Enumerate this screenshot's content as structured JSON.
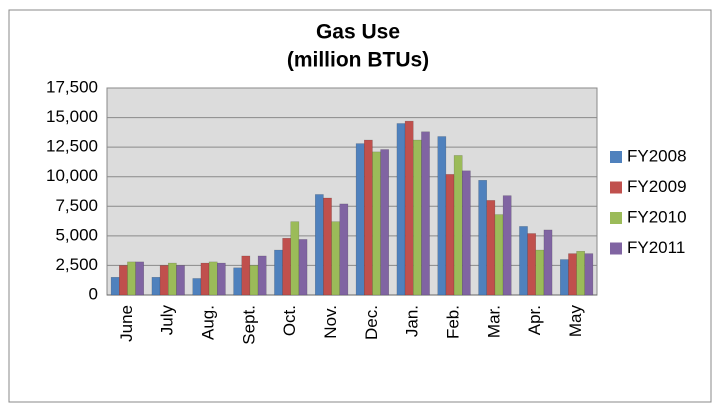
{
  "chart_data": {
    "type": "bar",
    "title": "Gas Use",
    "subtitle": "(million BTUs)",
    "categories": [
      "June",
      "July",
      "Aug.",
      "Sept.",
      "Oct.",
      "Nov.",
      "Dec.",
      "Jan.",
      "Feb.",
      "Mar.",
      "Apr.",
      "May"
    ],
    "series": [
      {
        "name": "FY2008",
        "color": "#4f81bd",
        "values": [
          1500,
          1500,
          1400,
          2300,
          3800,
          8500,
          12800,
          14500,
          13400,
          9700,
          5800,
          3000
        ]
      },
      {
        "name": "FY2009",
        "color": "#c0504d",
        "values": [
          2500,
          2500,
          2700,
          3300,
          4800,
          8200,
          13100,
          14700,
          10200,
          8000,
          5200,
          3500
        ]
      },
      {
        "name": "FY2010",
        "color": "#9bbb59",
        "values": [
          2800,
          2700,
          2800,
          2500,
          6200,
          6200,
          12100,
          13100,
          11800,
          6800,
          3800,
          3700
        ]
      },
      {
        "name": "FY2011",
        "color": "#8064a2",
        "values": [
          2800,
          2500,
          2700,
          3300,
          4700,
          7700,
          12300,
          13800,
          10500,
          8400,
          5500,
          3500
        ]
      }
    ],
    "ylim": [
      0,
      17500
    ],
    "yticks": [
      0,
      {
        "value": 2500,
        "label": "2,500"
      },
      {
        "value": 5000,
        "label": "5,000"
      },
      {
        "value": 7500,
        "label": "7,500"
      },
      {
        "value": 10000,
        "label": "10,000"
      },
      {
        "value": 12500,
        "label": "12,500"
      },
      {
        "value": 15000,
        "label": "15,000"
      },
      {
        "value": 17500,
        "label": "17,500"
      }
    ],
    "grid": true,
    "legend": "right"
  }
}
